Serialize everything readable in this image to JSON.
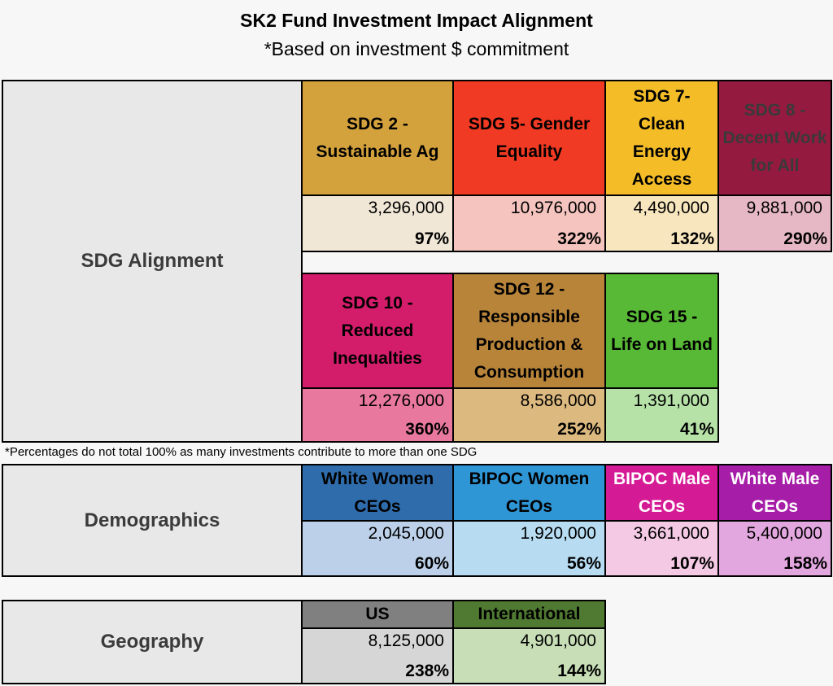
{
  "title": "SK2 Fund Investment Impact Alignment",
  "subtitle": "*Based on investment $ commitment",
  "sdg_section": {
    "label": "SDG Alignment",
    "row1": [
      {
        "name": "SDG 2 - Sustainable Ag",
        "value": "3,296,000",
        "percent": "97%",
        "color": "#d4a23c",
        "value_bg": "#f0e7d6",
        "text_color": "#000000"
      },
      {
        "name": "SDG 5- Gender Equality",
        "value": "10,976,000",
        "percent": "322%",
        "color": "#f03a23",
        "value_bg": "#f5c4be",
        "text_color": "#000000"
      },
      {
        "name": "SDG 7- Clean Energy Access",
        "value": "4,490,000",
        "percent": "132%",
        "color": "#f4bd28",
        "value_bg": "#f8e6be",
        "text_color": "#000000"
      },
      {
        "name": "SDG 8 - Decent Work for All",
        "value": "9,881,000",
        "percent": "290%",
        "color": "#951a3f",
        "value_bg": "#e6b8c6",
        "text_color": "#3a3a3a"
      }
    ],
    "row2": [
      {
        "name": "SDG 10 - Reduced Inequalties",
        "value": "12,276,000",
        "percent": "360%",
        "color": "#d31c6a",
        "value_bg": "#e9789f",
        "text_color": "#000000"
      },
      {
        "name": "SDG 12 - Responsible Production & Consumption",
        "value": "8,586,000",
        "percent": "252%",
        "color": "#b8843a",
        "value_bg": "#dcb97f",
        "text_color": "#000000"
      },
      {
        "name": "SDG 15 - Life on Land",
        "value": "1,391,000",
        "percent": "41%",
        "color": "#57b935",
        "value_bg": "#b6e2a8",
        "text_color": "#000000"
      }
    ],
    "footnote": "*Percentages do not total 100% as many investments contribute to more than one SDG"
  },
  "demographics": {
    "label": "Demographics",
    "items": [
      {
        "name": "White Women CEOs",
        "value": "2,045,000",
        "percent": "60%",
        "color": "#2e6cab",
        "value_bg": "#bcd1e9",
        "text_color": "#000000"
      },
      {
        "name": "BIPOC Women CEOs",
        "value": "1,920,000",
        "percent": "56%",
        "color": "#2f96d6",
        "value_bg": "#b7dcf1",
        "text_color": "#000000"
      },
      {
        "name": "BIPOC Male CEOs",
        "value": "3,661,000",
        "percent": "107%",
        "color": "#d51a95",
        "value_bg": "#f4c9e4",
        "text_color": "#ffffff"
      },
      {
        "name": "White Male CEOs",
        "value": "5,400,000",
        "percent": "158%",
        "color": "#a61da8",
        "value_bg": "#e3a7e0",
        "text_color": "#ffffff"
      }
    ]
  },
  "geography": {
    "label": "Geography",
    "items": [
      {
        "name": "US",
        "value": "8,125,000",
        "percent": "238%",
        "color": "#808080",
        "value_bg": "#d6d6d6",
        "text_color": "#000000"
      },
      {
        "name": "International",
        "value": "4,901,000",
        "percent": "144%",
        "color": "#507a32",
        "value_bg": "#c7deb6",
        "text_color": "#000000"
      }
    ]
  }
}
